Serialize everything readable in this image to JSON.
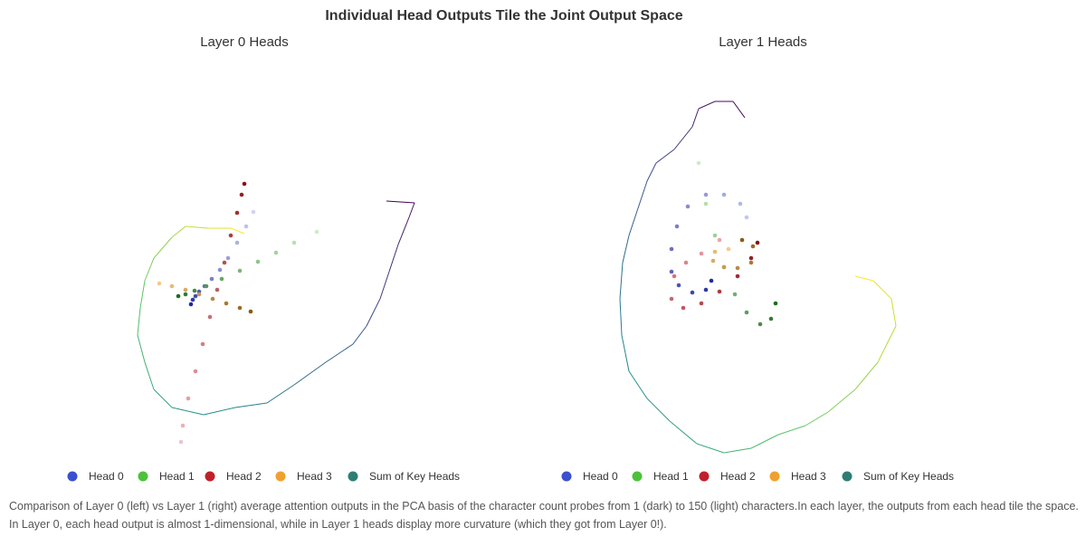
{
  "chart_data": {
    "type": "scatter",
    "title": "Individual Head Outputs Tile the Joint Output Space",
    "caption": "Comparison of Layer 0 (left) vs Layer 1 (right) average attention outputs in the PCA basis of the character count probes from 1 (dark) to 150 (light) characters.In each layer, the outputs from each head tile the space. In Layer 0, each head output is almost 1-dimensional, while in Layer 1 heads display more curvature (which they got from Layer 0!).",
    "panels": [
      {
        "subtitle": "Layer 0 Heads",
        "series": [
          {
            "name": "Head 0",
            "color": "#3b4fd0",
            "color_dark": "#1f2a9c",
            "color_light": "#d0d3f5",
            "x": [
              211,
              213,
              216,
              220,
              226,
              234,
              243,
              252,
              262,
              272,
              280
            ],
            "values": [
              264,
              269,
              273,
              278,
              284,
              292,
              302,
              315,
              332,
              350,
              366
            ]
          },
          {
            "name": "Head 1",
            "color": "#4cc23a",
            "color_dark": "#1e6b1e",
            "color_light": "#c8f0c0",
            "x": [
              197,
              205,
              215,
              228,
              245,
              265,
              285,
              305,
              325,
              350
            ],
            "values": [
              273,
              275,
              279,
              284,
              292,
              301,
              311,
              321,
              332,
              344
            ]
          },
          {
            "name": "Head 2",
            "color": "#c0202a",
            "color_dark": "#8b1010",
            "color_light": "#f5c0c8",
            "x": [
              270,
              267,
              262,
              255,
              248,
              240,
              232,
              224,
              216,
              208,
              202,
              200
            ],
            "values": [
              397,
              385,
              365,
              340,
              310,
              280,
              250,
              220,
              190,
              160,
              130,
              112
            ]
          },
          {
            "name": "Head 3",
            "color": "#f0a030",
            "color_dark": "#8a5a10",
            "color_light": "#f7c888",
            "x": [
              277,
              265,
              250,
              235,
              220,
              205,
              190,
              176
            ],
            "values": [
              256,
              260,
              265,
              270,
              275,
              280,
              284,
              287
            ]
          },
          {
            "name": "Sum of Key Heads",
            "color": "#2e7d74",
            "line": true,
            "colormap": [
              "#440154",
              "#3b528b",
              "#21918c",
              "#5ec962",
              "#fde725"
            ],
            "x": [
              427,
              458,
              452,
              440,
              430,
              420,
              405,
              390,
              360,
              325,
              295,
              260,
              225,
              190,
              170,
              160,
              152,
              155,
              160,
              170,
              190,
              205,
              230,
              255,
              270
            ],
            "values": [
              378,
              376,
              360,
              330,
              300,
              270,
              240,
              220,
              200,
              175,
              155,
              150,
              142,
              150,
              170,
              200,
              230,
              260,
              290,
              315,
              338,
              350,
              348,
              348,
              342
            ]
          }
        ]
      },
      {
        "subtitle": "Layer 1 Heads",
        "series": [
          {
            "name": "Head 0",
            "color": "#3b4fd0",
            "color_dark": "#1f2a9c",
            "color_light": "#c0c6f2",
            "x": [
              786,
              780,
              765,
              750,
              742,
              742,
              748,
              760,
              780,
              800,
              818,
              825
            ],
            "values": [
              290,
              280,
              277,
              285,
              300,
              325,
              350,
              372,
              385,
              385,
              375,
              360
            ]
          },
          {
            "name": "Head 1",
            "color": "#4cc23a",
            "color_dark": "#1e6b1e",
            "color_light": "#c8f0c0",
            "x": [
              857,
              852,
              840,
              825,
              812,
              800,
              790,
              780,
              772
            ],
            "values": [
              265,
              248,
              242,
              255,
              275,
              305,
              340,
              375,
              420
            ]
          },
          {
            "name": "Head 2",
            "color": "#c0202a",
            "color_dark": "#8b1010",
            "color_light": "#f0a0b0",
            "x": [
              837,
              830,
              815,
              795,
              775,
              755,
              742,
              745,
              758,
              775,
              795
            ],
            "values": [
              332,
              315,
              295,
              278,
              265,
              260,
              270,
              295,
              310,
              320,
              335
            ]
          },
          {
            "name": "Head 3",
            "color": "#f0a030",
            "color_dark": "#8a5a10",
            "color_light": "#f7c888",
            "x": [
              820,
              832,
              830,
              815,
              800,
              788,
              790,
              805
            ],
            "values": [
              335,
              328,
              310,
              304,
              305,
              312,
              322,
              325
            ]
          },
          {
            "name": "Sum of Key Heads",
            "color": "#2e7d74",
            "line": true,
            "colormap": [
              "#440154",
              "#3b528b",
              "#21918c",
              "#5ec962",
              "#fde725"
            ],
            "x": [
              823,
              810,
              790,
              772,
              765,
              745,
              725,
              715,
              705,
              695,
              688,
              685,
              687,
              695,
              715,
              740,
              770,
              800,
              830,
              860,
              890,
              915,
              945,
              970,
              990,
              985,
              965,
              945
            ],
            "values": [
              470,
              488,
              488,
              480,
              460,
              435,
              420,
              400,
              370,
              340,
              310,
              270,
              230,
              190,
              160,
              135,
              110,
              100,
              105,
              120,
              130,
              145,
              170,
              200,
              240,
              270,
              290,
              295
            ]
          }
        ]
      }
    ]
  }
}
